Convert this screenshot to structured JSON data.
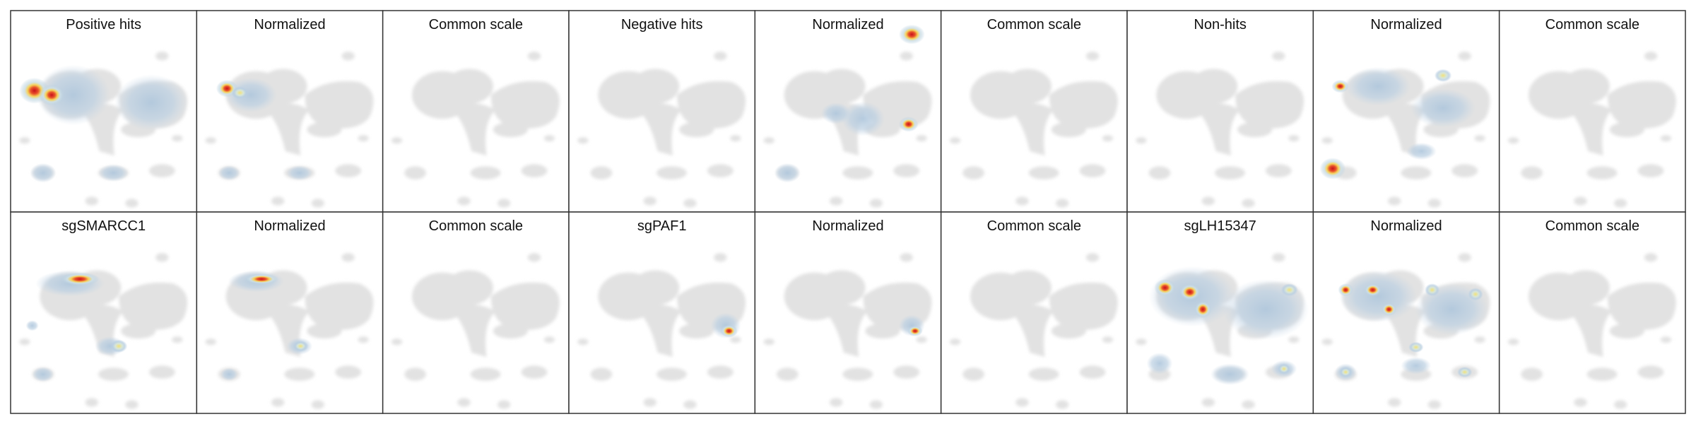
{
  "panels": [
    [
      "Positive hits",
      "Normalized",
      "Common scale",
      "Negative hits",
      "Normalized",
      "Common scale",
      "Non-hits",
      "Normalized",
      "Common scale"
    ],
    [
      "sgSMARCC1",
      "Normalized",
      "Common scale",
      "sgPAF1",
      "Normalized",
      "Common scale",
      "sgLH15347",
      "Normalized",
      "Common scale"
    ]
  ]
}
